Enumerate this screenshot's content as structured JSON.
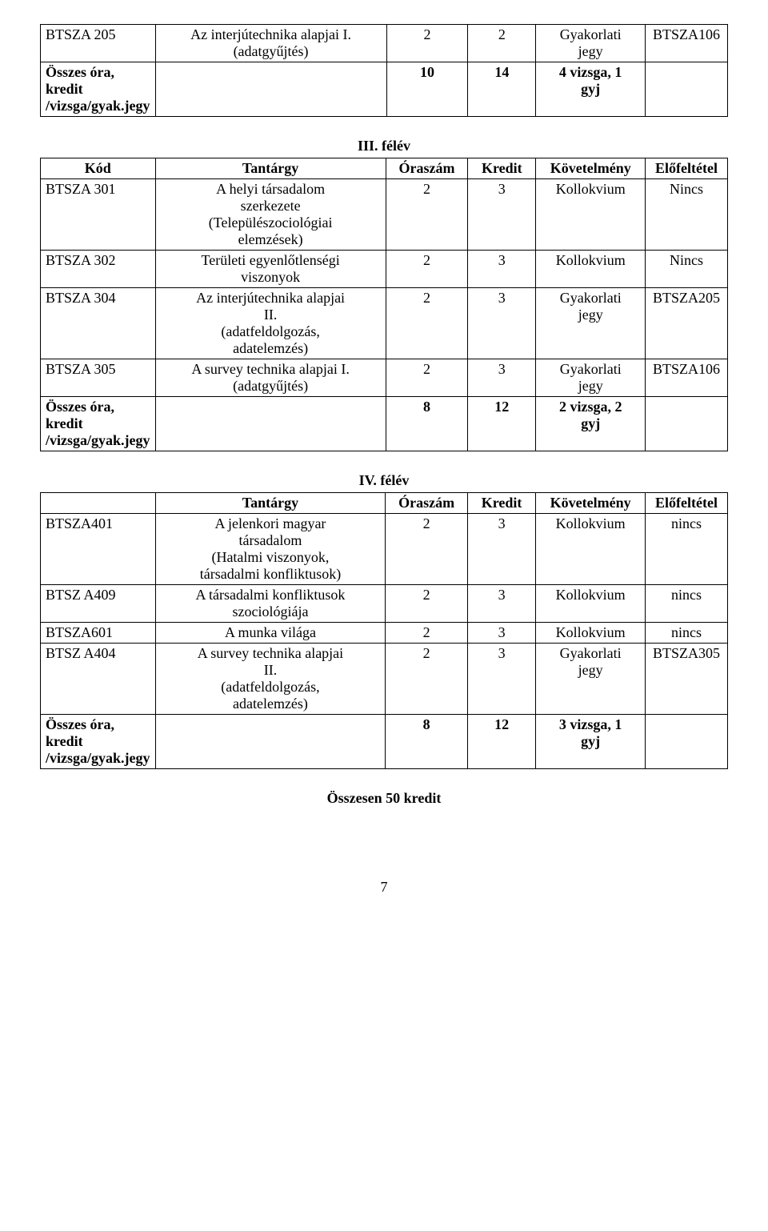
{
  "table1": {
    "rows": [
      {
        "code": "BTSZA 205",
        "subject": "Az interjútechnika alapjai I.\n(adatgyűjtés)",
        "hours": "2",
        "credit": "2",
        "req": "Gyakorlati\njegy",
        "pre": "BTSZA106"
      },
      {
        "code": "Összes óra, kredit\n/vizsga/gyak.jegy",
        "subject": "",
        "hours": "10",
        "credit": "14",
        "req": "4 vizsga, 1\ngyj",
        "pre": ""
      }
    ]
  },
  "heading2": "III. félév",
  "table2": {
    "header": {
      "code": "Kód",
      "subject": "Tantárgy",
      "hours": "Óraszám",
      "credit": "Kredit",
      "req": "Követelmény",
      "pre": "Előfeltétel"
    },
    "rows": [
      {
        "code": "BTSZA 301",
        "subject": "A helyi társadalom\nszerkezete\n(Települészociológiai\nelemzések)",
        "hours": "2",
        "credit": "3",
        "req": "Kollokvium",
        "pre": "Nincs"
      },
      {
        "code": "BTSZA 302",
        "subject": "Területi egyenlőtlenségi\nviszonyok",
        "hours": "2",
        "credit": "3",
        "req": "Kollokvium",
        "pre": "Nincs"
      },
      {
        "code": "BTSZA 304",
        "subject": "Az interjútechnika alapjai\nII.\n(adatfeldolgozás,\nadatelemzés)",
        "hours": "2",
        "credit": "3",
        "req": "Gyakorlati\njegy",
        "pre": "BTSZA205"
      },
      {
        "code": "BTSZA 305",
        "subject": "A survey technika alapjai I.\n(adatgyűjtés)",
        "hours": "2",
        "credit": "3",
        "req": "Gyakorlati\njegy",
        "pre": "BTSZA106"
      },
      {
        "code": "Összes óra, kredit\n/vizsga/gyak.jegy",
        "subject": "",
        "hours": "8",
        "credit": "12",
        "req": "2 vizsga, 2\ngyj",
        "pre": ""
      }
    ]
  },
  "heading3": "IV. félév",
  "table3": {
    "header": {
      "code": "",
      "subject": "Tantárgy",
      "hours": "Óraszám",
      "credit": "Kredit",
      "req": "Követelmény",
      "pre": "Előfeltétel"
    },
    "rows": [
      {
        "code": "BTSZA401",
        "subject": "A jelenkori magyar\ntársadalom\n(Hatalmi viszonyok,\ntársadalmi konfliktusok)",
        "hours": "2",
        "credit": "3",
        "req": "Kollokvium",
        "pre": "nincs"
      },
      {
        "code": "BTSZ A409",
        "subject": "A társadalmi konfliktusok\nszociológiája",
        "hours": "2",
        "credit": "3",
        "req": "Kollokvium",
        "pre": "nincs"
      },
      {
        "code": "BTSZA601",
        "subject": "A munka világa",
        "hours": "2",
        "credit": "3",
        "req": "Kollokvium",
        "pre": "nincs"
      },
      {
        "code": "BTSZ A404",
        "subject": "A survey technika alapjai\nII.\n(adatfeldolgozás,\nadatelemzés)",
        "hours": "2",
        "credit": "3",
        "req": "Gyakorlati\njegy",
        "pre": "BTSZA305"
      },
      {
        "code": "Összes óra, kredit\n/vizsga/gyak.jegy",
        "subject": "",
        "hours": "8",
        "credit": "12",
        "req": "3 vizsga, 1\ngyj",
        "pre": ""
      }
    ]
  },
  "summary": "Összesen 50 kredit",
  "page_number": "7"
}
